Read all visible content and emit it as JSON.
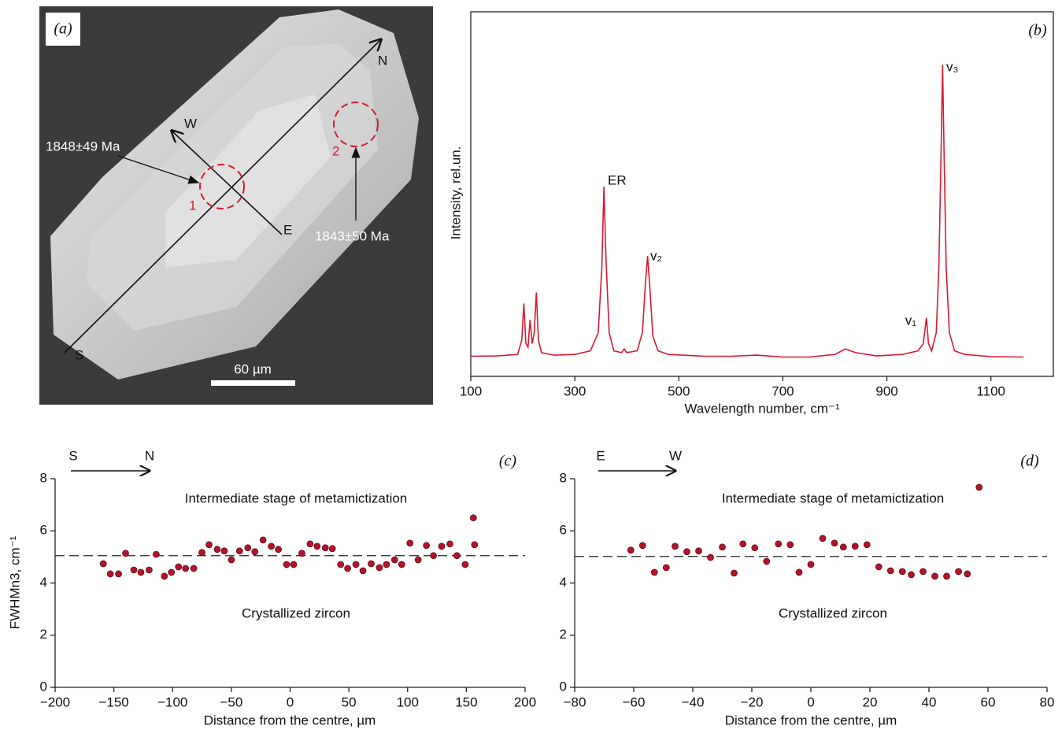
{
  "image": {
    "panel_label": "(a)",
    "directions": [
      "N",
      "S",
      "W",
      "E"
    ],
    "ages": [
      "1848±49 Ma",
      "1843±50 Ma"
    ],
    "spots": [
      "1",
      "2"
    ],
    "scale_bar": "60 µm"
  },
  "chart_data": [
    {
      "type": "line",
      "panel_label": "(b)",
      "x_label": "Wavelength number, cm⁻¹",
      "y_label": "Intensity, rel.un.",
      "color": "#d7192f",
      "x": [
        100,
        150,
        190,
        198,
        202,
        206,
        210,
        214,
        218,
        222,
        226,
        230,
        236,
        260,
        300,
        330,
        345,
        352,
        356,
        360,
        366,
        375,
        390,
        395,
        400,
        420,
        430,
        436,
        440,
        444,
        450,
        460,
        480,
        550,
        600,
        650,
        700,
        750,
        800,
        820,
        840,
        880,
        930,
        960,
        970,
        976,
        980,
        986,
        995,
        1000,
        1004,
        1007,
        1010,
        1014,
        1020,
        1030,
        1050,
        1100,
        1163
      ],
      "values": [
        5.5,
        5.6,
        6,
        10,
        20,
        9,
        8,
        15.5,
        9,
        12,
        23,
        10,
        6.5,
        5.8,
        6,
        7,
        12,
        30,
        52,
        32,
        12,
        7,
        6.5,
        7.5,
        6.5,
        7,
        12,
        26,
        33,
        25,
        11,
        7,
        6,
        5.5,
        5.5,
        5.8,
        5.3,
        5.3,
        6,
        7.5,
        6.5,
        5.6,
        6,
        7,
        9,
        16,
        9,
        7,
        12,
        30,
        60,
        85.5,
        60,
        30,
        12,
        7,
        6,
        5.4,
        5.3
      ],
      "annotations": [
        "ER",
        "v₂",
        "v₁",
        "v₃"
      ],
      "xlim": [
        100,
        1220
      ],
      "ylim": [
        0,
        100
      ],
      "xticks": [
        100,
        300,
        500,
        700,
        900,
        1100
      ]
    },
    {
      "type": "scatter",
      "panel_label": "(c)",
      "direction_from": "S",
      "direction_to": "N",
      "x_label": "Distance from the centre, µm",
      "y_label": "FWHMn3, cm⁻¹",
      "color": "#b5122b",
      "x": [
        -159,
        -153,
        -146,
        -140,
        -133,
        -127,
        -120,
        -114,
        -107,
        -101,
        -95,
        -89,
        -82,
        -75,
        -69,
        -62,
        -56,
        -50,
        -43,
        -36,
        -30,
        -23,
        -16,
        -10,
        -3,
        3,
        10,
        17,
        23,
        30,
        36,
        43,
        49,
        56,
        62,
        69,
        76,
        82,
        89,
        95,
        102,
        109,
        116,
        122,
        129,
        136,
        142,
        149,
        156,
        157
      ],
      "values": [
        4.74,
        4.35,
        4.35,
        5.14,
        4.5,
        4.41,
        4.5,
        5.1,
        4.26,
        4.41,
        4.62,
        4.56,
        4.56,
        5.17,
        5.47,
        5.29,
        5.23,
        4.89,
        5.23,
        5.35,
        5.2,
        5.65,
        5.41,
        5.29,
        4.71,
        4.71,
        5.14,
        5.5,
        5.41,
        5.35,
        5.32,
        4.71,
        4.56,
        4.71,
        4.47,
        4.74,
        4.59,
        4.71,
        4.89,
        4.71,
        5.53,
        4.89,
        5.44,
        5.05,
        5.41,
        5.5,
        5.05,
        4.71,
        6.5,
        5.47
      ],
      "hline": 5.05,
      "annotations": [
        "Intermediate stage of metamictization",
        "Crystallized zircon"
      ],
      "xlim": [
        -200,
        200
      ],
      "ylim": [
        0,
        8
      ],
      "xticks": [
        {
          "value": -200,
          "label": "−200"
        },
        {
          "value": -150,
          "label": "−150"
        },
        {
          "value": -100,
          "label": "−100"
        },
        {
          "value": -50,
          "label": "−50"
        },
        0,
        50,
        100,
        150,
        200
      ],
      "yticks": [
        0,
        2,
        4,
        6,
        8
      ]
    },
    {
      "type": "scatter",
      "panel_label": "(d)",
      "direction_from": "E",
      "direction_to": "W",
      "x_label": "Distance from the centre, µm",
      "color": "#b5122b",
      "x": [
        -61,
        -57,
        -53,
        -49,
        -46,
        -42,
        -38,
        -34,
        -30,
        -26,
        -23,
        -19,
        -15,
        -11,
        -7,
        -4,
        0,
        4,
        8,
        11,
        15,
        19,
        23,
        27,
        31,
        34,
        38,
        42,
        46,
        50,
        53,
        57
      ],
      "values": [
        5.26,
        5.44,
        4.41,
        4.59,
        5.41,
        5.2,
        5.23,
        4.98,
        5.38,
        4.38,
        5.5,
        5.35,
        4.83,
        5.5,
        5.47,
        4.41,
        4.71,
        5.71,
        5.53,
        5.38,
        5.41,
        5.47,
        4.62,
        4.47,
        4.44,
        4.32,
        4.44,
        4.26,
        4.26,
        4.44,
        4.35,
        7.67
      ],
      "hline": 5.02,
      "annotations": [
        "Intermediate stage of metamictization",
        "Crystallized zircon"
      ],
      "xlim": [
        -80,
        80
      ],
      "ylim": [
        0,
        8
      ],
      "xticks": [
        {
          "value": -80,
          "label": "−80"
        },
        {
          "value": -60,
          "label": "−60"
        },
        {
          "value": -40,
          "label": "−40"
        },
        {
          "value": -20,
          "label": "−20"
        },
        0,
        20,
        40,
        60,
        80
      ],
      "yticks": [
        0,
        2,
        4,
        6,
        8
      ]
    }
  ]
}
